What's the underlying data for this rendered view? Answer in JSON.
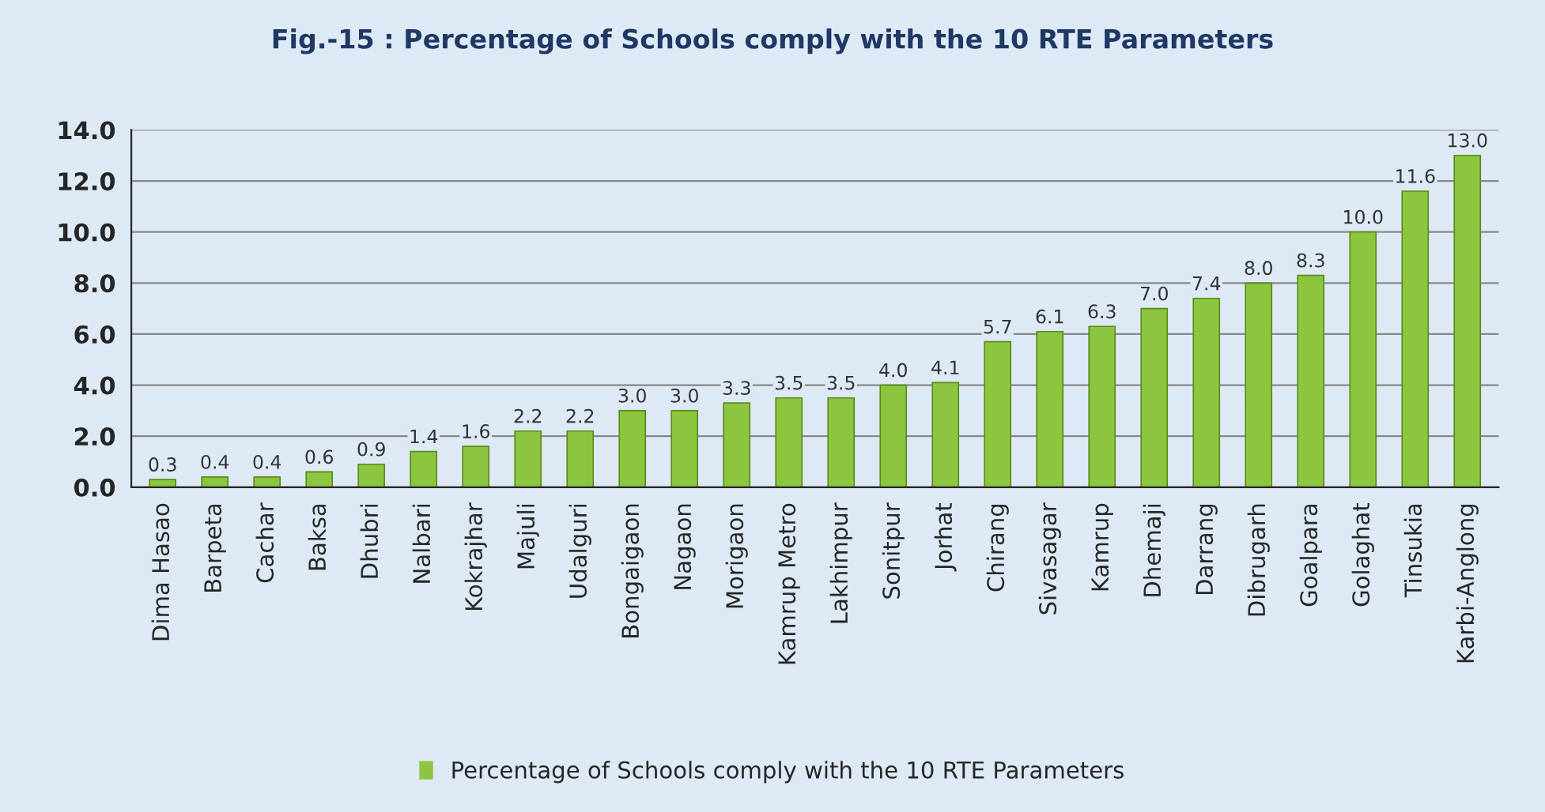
{
  "chart_data": {
    "type": "bar",
    "title": "Fig.-15 : Percentage of Schools comply with the 10 RTE Parameters",
    "categories": [
      "Dima Hasao",
      "Barpeta",
      "Cachar",
      "Baksa",
      "Dhubri",
      "Nalbari",
      "Kokrajhar",
      "Majuli",
      "Udalguri",
      "Bongaigaon",
      "Nagaon",
      "Morigaon",
      "Kamrup Metro",
      "Lakhimpur",
      "Sonitpur",
      "Jorhat",
      "Chirang",
      "Sivasagar",
      "Kamrup",
      "Dhemaji",
      "Darrang",
      "Dibrugarh",
      "Goalpara",
      "Golaghat",
      "Tinsukia",
      "Karbi-Anglong"
    ],
    "series": [
      {
        "name": "Percentage of Schools comply with the 10 RTE Parameters",
        "color": "#8cc63f",
        "values": [
          0.3,
          0.4,
          0.4,
          0.6,
          0.9,
          1.4,
          1.6,
          2.2,
          2.2,
          3.0,
          3.0,
          3.3,
          3.5,
          3.5,
          4.0,
          4.1,
          5.7,
          6.1,
          6.3,
          7.0,
          7.4,
          8.0,
          8.3,
          10.0,
          11.6,
          13.0
        ],
        "value_labels": [
          "0.3",
          "0.4",
          "0.4",
          "0.6",
          "0.9",
          "1.4",
          "1.6",
          "2.2",
          "2.2",
          "3.0",
          "3.0",
          "3.3",
          "3.5",
          "3.5",
          "4.0",
          "4.1",
          "5.7",
          "6.1",
          "6.3",
          "7.0",
          "7.4",
          "8.0",
          "8.3",
          "10.0",
          "11.6",
          "13.0"
        ]
      }
    ],
    "ylim": [
      0,
      14
    ],
    "yticks": [
      {
        "value": 0,
        "label": "0.0"
      },
      {
        "value": 2,
        "label": "2.0"
      },
      {
        "value": 4,
        "label": "4.0"
      },
      {
        "value": 6,
        "label": "6.0"
      },
      {
        "value": 8,
        "label": "8.0"
      },
      {
        "value": 10,
        "label": "10.0"
      },
      {
        "value": 12,
        "label": "12.0"
      },
      {
        "value": 14,
        "label": "14.0"
      }
    ],
    "grid": "y",
    "legend": "bottom"
  }
}
